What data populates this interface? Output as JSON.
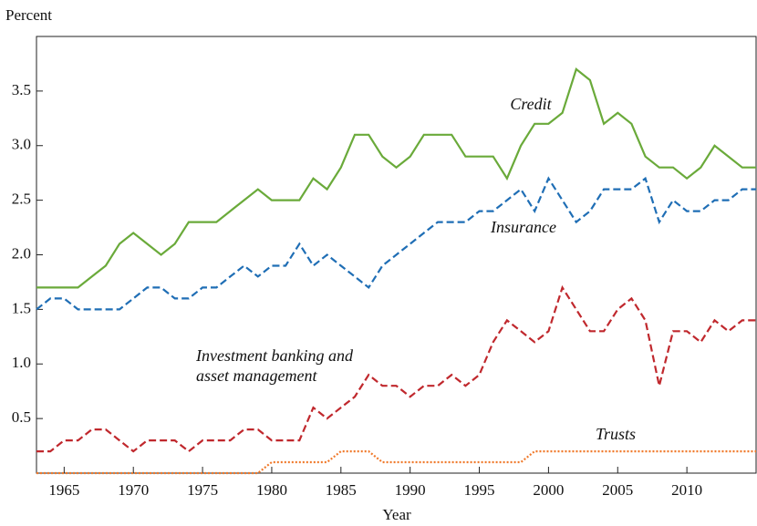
{
  "chart_data": {
    "type": "line",
    "y_label": "Percent",
    "x_label": "Year",
    "x": [
      1963,
      1964,
      1965,
      1966,
      1967,
      1968,
      1969,
      1970,
      1971,
      1972,
      1973,
      1974,
      1975,
      1976,
      1977,
      1978,
      1979,
      1980,
      1981,
      1982,
      1983,
      1984,
      1985,
      1986,
      1987,
      1988,
      1989,
      1990,
      1991,
      1992,
      1993,
      1994,
      1995,
      1996,
      1997,
      1998,
      1999,
      2000,
      2001,
      2002,
      2003,
      2004,
      2005,
      2006,
      2007,
      2008,
      2009,
      2010,
      2011,
      2012,
      2013,
      2014,
      2015
    ],
    "series": [
      {
        "name": "Credit",
        "color": "#6aaa3a",
        "style": "solid",
        "values": [
          1.7,
          1.7,
          1.7,
          1.7,
          1.8,
          1.9,
          2.1,
          2.2,
          2.1,
          2.0,
          2.1,
          2.3,
          2.3,
          2.3,
          2.4,
          2.5,
          2.6,
          2.5,
          2.5,
          2.5,
          2.7,
          2.6,
          2.8,
          3.1,
          3.1,
          2.9,
          2.8,
          2.9,
          3.1,
          3.1,
          3.1,
          2.9,
          2.9,
          2.9,
          2.7,
          3.0,
          3.2,
          3.2,
          3.3,
          3.7,
          3.6,
          3.2,
          3.3,
          3.2,
          2.9,
          2.8,
          2.8,
          2.7,
          2.8,
          3.0,
          2.9,
          2.8,
          2.8
        ]
      },
      {
        "name": "Insurance",
        "color": "#1f6eb5",
        "style": "dashed",
        "values": [
          1.5,
          1.6,
          1.6,
          1.5,
          1.5,
          1.5,
          1.5,
          1.6,
          1.7,
          1.7,
          1.6,
          1.6,
          1.7,
          1.7,
          1.8,
          1.9,
          1.8,
          1.9,
          1.9,
          2.1,
          1.9,
          2.0,
          1.9,
          1.8,
          1.7,
          1.9,
          2.0,
          2.1,
          2.2,
          2.3,
          2.3,
          2.3,
          2.4,
          2.4,
          2.5,
          2.6,
          2.4,
          2.7,
          2.5,
          2.3,
          2.4,
          2.6,
          2.6,
          2.6,
          2.7,
          2.3,
          2.5,
          2.4,
          2.4,
          2.5,
          2.5,
          2.6,
          2.6
        ]
      },
      {
        "name": "Investment banking and asset management",
        "color": "#c0282d",
        "style": "dashed",
        "values": [
          0.2,
          0.2,
          0.3,
          0.3,
          0.4,
          0.4,
          0.3,
          0.2,
          0.3,
          0.3,
          0.3,
          0.2,
          0.3,
          0.3,
          0.3,
          0.4,
          0.4,
          0.3,
          0.3,
          0.3,
          0.6,
          0.5,
          0.6,
          0.7,
          0.9,
          0.8,
          0.8,
          0.7,
          0.8,
          0.8,
          0.9,
          0.8,
          0.9,
          1.2,
          1.4,
          1.3,
          1.2,
          1.3,
          1.7,
          1.5,
          1.3,
          1.3,
          1.5,
          1.6,
          1.4,
          0.8,
          1.3,
          1.3,
          1.2,
          1.4,
          1.3,
          1.4,
          1.4
        ]
      },
      {
        "name": "Trusts",
        "color": "#f07a2c",
        "style": "dotted",
        "values": [
          0,
          0,
          0,
          0,
          0,
          0,
          0,
          0,
          0,
          0,
          0,
          0,
          0,
          0,
          0,
          0,
          0,
          0.1,
          0.1,
          0.1,
          0.1,
          0.1,
          0.2,
          0.2,
          0.2,
          0.1,
          0.1,
          0.1,
          0.1,
          0.1,
          0.1,
          0.1,
          0.1,
          0.1,
          0.1,
          0.1,
          0.2,
          0.2,
          0.2,
          0.2,
          0.2,
          0.2,
          0.2,
          0.2,
          0.2,
          0.2,
          0.2,
          0.2,
          0.2,
          0.2,
          0.2,
          0.2,
          0.2
        ]
      }
    ],
    "xlim": [
      1963,
      2015
    ],
    "xticks": [
      1965,
      1970,
      1975,
      1980,
      1985,
      1990,
      1995,
      2000,
      2005,
      2010
    ],
    "ylim": [
      0,
      4
    ],
    "yticks": [
      0.5,
      1.0,
      1.5,
      2.0,
      2.5,
      3.0,
      3.5
    ]
  }
}
